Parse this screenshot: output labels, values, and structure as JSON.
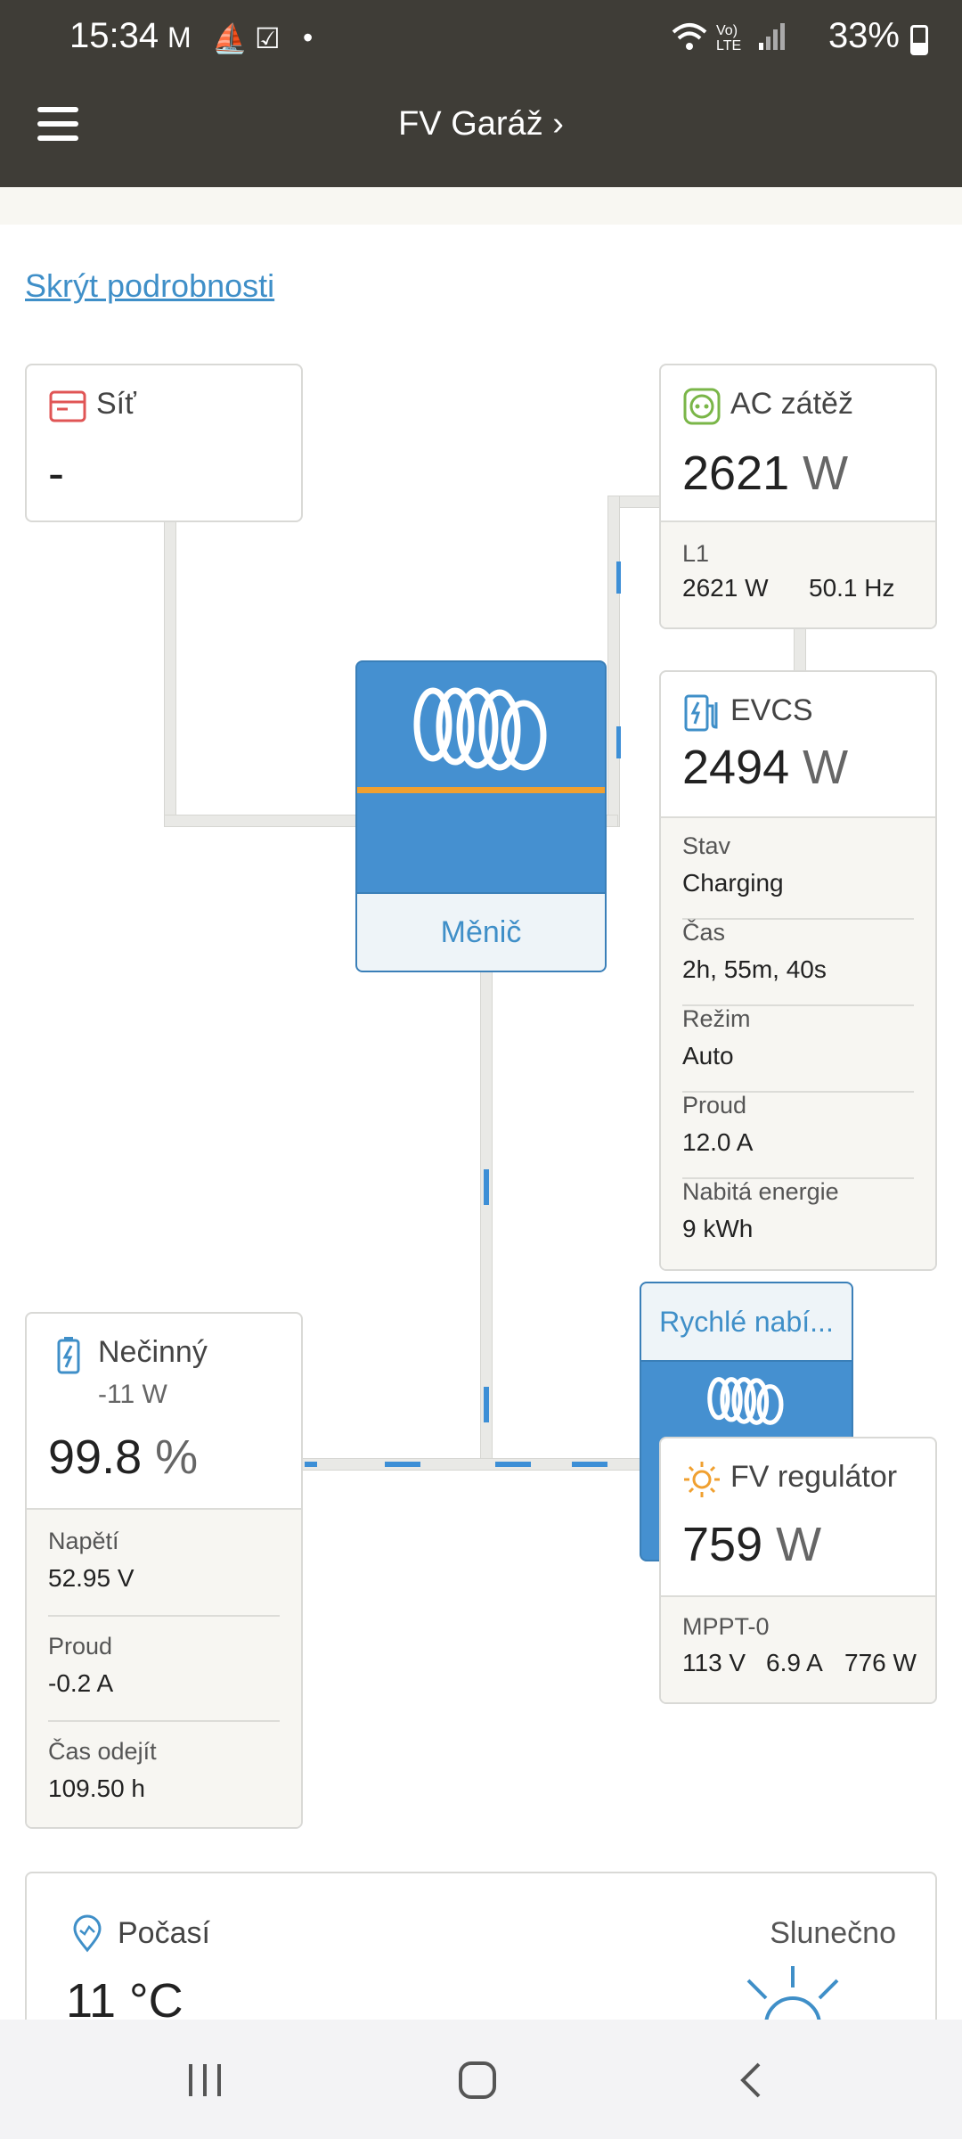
{
  "status_bar": {
    "time": "15:34",
    "battery": "33%"
  },
  "app_bar": {
    "title": "FV Garáž ›"
  },
  "hide_details": "Skrýt podrobnosti",
  "grid": {
    "title": "Síť",
    "value": "-"
  },
  "ac_load": {
    "title": "AC zátěž",
    "power": "2621",
    "unit": "W",
    "phase": "L1",
    "phase_power": "2621 W",
    "frequency": "50.1 Hz"
  },
  "evcs": {
    "title": "EVCS",
    "power": "2494",
    "unit": "W",
    "rows": [
      {
        "label": "Stav",
        "value": "Charging"
      },
      {
        "label": "Čas",
        "value": "2h, 55m, 40s"
      },
      {
        "label": "Režim",
        "value": "Auto"
      },
      {
        "label": "Proud",
        "value": "12.0 A"
      },
      {
        "label": "Nabitá energie",
        "value": "9 kWh"
      }
    ]
  },
  "inverter": {
    "label": "Měnič"
  },
  "battery": {
    "title": "Nečinný",
    "power": "-11 W",
    "soc": "99.8",
    "soc_unit": "%",
    "rows": [
      {
        "label": "Napětí",
        "value": "52.95 V"
      },
      {
        "label": "Proud",
        "value": "-0.2 A"
      },
      {
        "label": "Čas odejít",
        "value": "109.50 h"
      }
    ]
  },
  "fast_charger": {
    "label": "Rychlé nabí..."
  },
  "pv": {
    "title": "FV regulátor",
    "power": "759",
    "unit": "W",
    "tracker": "MPPT-0",
    "voltage": "113 V",
    "current": "6.9 A",
    "tracker_power": "776 W"
  },
  "weather": {
    "title": "Počasí",
    "temp": "11 °C",
    "condition": "Slunečno"
  },
  "colors": {
    "bar": "#3f3d37",
    "accent": "#3f8fc8",
    "victron_blue": "#4590d0",
    "orange": "#f0a030"
  }
}
